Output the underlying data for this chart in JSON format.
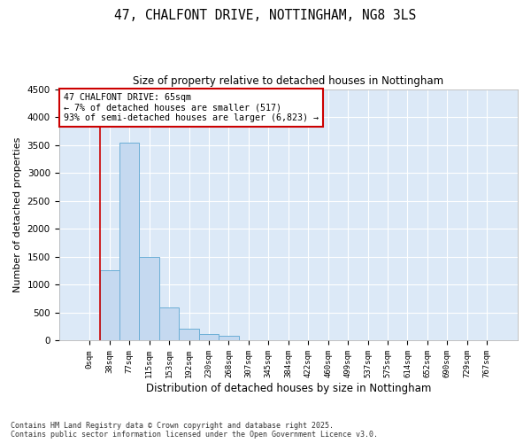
{
  "title_line1": "47, CHALFONT DRIVE, NOTTINGHAM, NG8 3LS",
  "title_line2": "Size of property relative to detached houses in Nottingham",
  "xlabel": "Distribution of detached houses by size in Nottingham",
  "ylabel": "Number of detached properties",
  "bar_labels": [
    "0sqm",
    "38sqm",
    "77sqm",
    "115sqm",
    "153sqm",
    "192sqm",
    "230sqm",
    "268sqm",
    "307sqm",
    "345sqm",
    "384sqm",
    "422sqm",
    "460sqm",
    "499sqm",
    "537sqm",
    "575sqm",
    "614sqm",
    "652sqm",
    "690sqm",
    "729sqm",
    "767sqm"
  ],
  "bar_values": [
    0,
    1260,
    3540,
    1490,
    590,
    220,
    120,
    80,
    0,
    0,
    0,
    0,
    0,
    0,
    0,
    0,
    0,
    0,
    0,
    0,
    0
  ],
  "bar_color": "#c5d9f0",
  "bar_edge_color": "#6baed6",
  "ylim": [
    0,
    4500
  ],
  "yticks": [
    0,
    500,
    1000,
    1500,
    2000,
    2500,
    3000,
    3500,
    4000,
    4500
  ],
  "vline_color": "#cc0000",
  "annotation_text": "47 CHALFONT DRIVE: 65sqm\n← 7% of detached houses are smaller (517)\n93% of semi-detached houses are larger (6,823) →",
  "annotation_box_color": "#cc0000",
  "footer_text": "Contains HM Land Registry data © Crown copyright and database right 2025.\nContains public sector information licensed under the Open Government Licence v3.0.",
  "bg_color": "#dce9f7",
  "fig_bg_color": "#ffffff",
  "grid_color": "#ffffff"
}
